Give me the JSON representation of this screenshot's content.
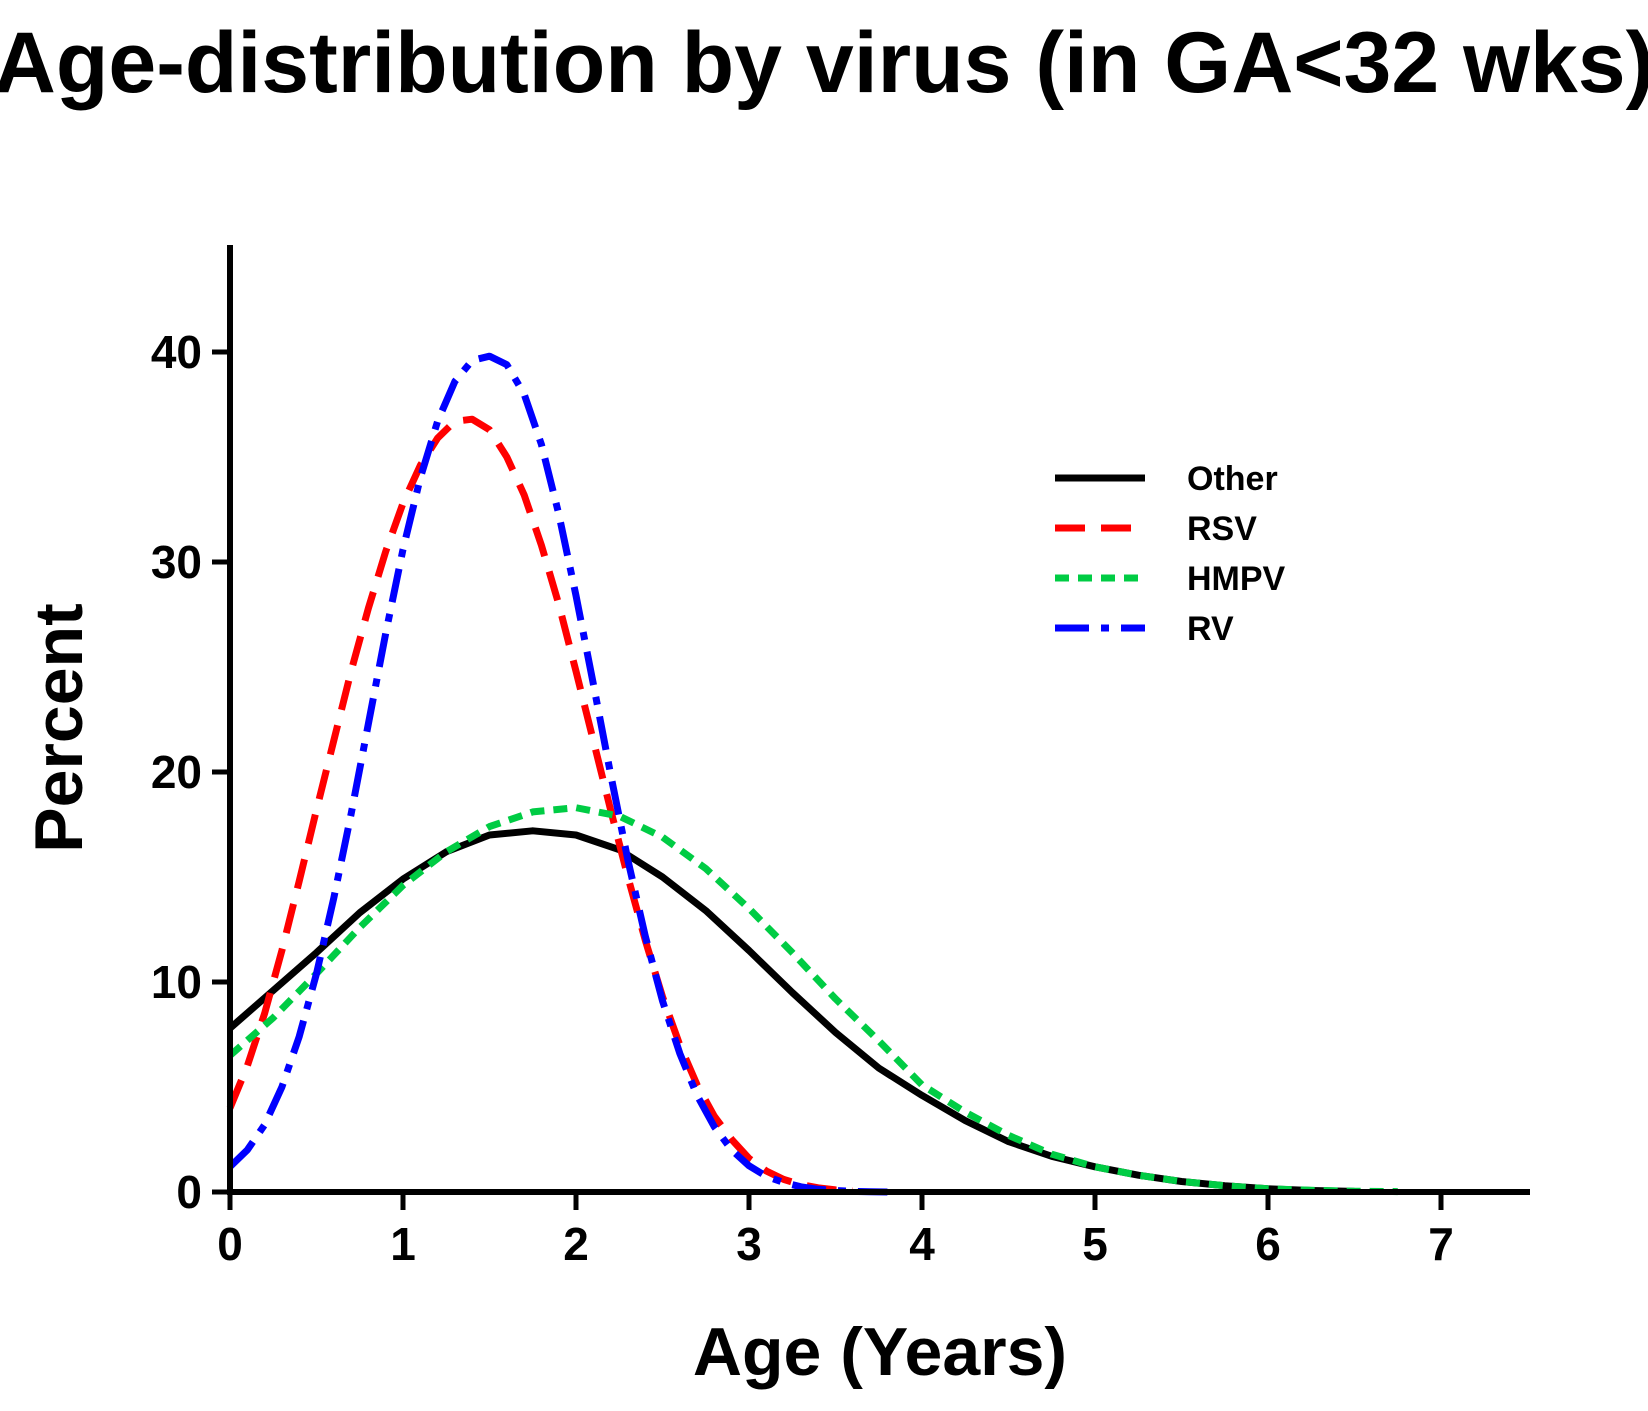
{
  "chart_data": {
    "type": "line",
    "title": "Age-distribution by virus (in GA<32 wks)",
    "xlabel": "Age (Years)",
    "ylabel": "Percent",
    "xlim": [
      0,
      7.5
    ],
    "ylim": [
      0,
      45
    ],
    "x_ticks": [
      0,
      1,
      2,
      3,
      4,
      5,
      6,
      7
    ],
    "y_ticks": [
      0,
      10,
      20,
      30,
      40
    ],
    "grid": false,
    "legend_position": "top-right",
    "series": [
      {
        "name": "Other",
        "color": "#000000",
        "style": "solid",
        "x": [
          0,
          0.25,
          0.5,
          0.75,
          1.0,
          1.25,
          1.5,
          1.75,
          2.0,
          2.25,
          2.5,
          2.75,
          3.0,
          3.25,
          3.5,
          3.75,
          4.0,
          4.25,
          4.5,
          4.75,
          5.0,
          5.25,
          5.5,
          5.75,
          6.0,
          6.25,
          6.5
        ],
        "values": [
          7.8,
          9.6,
          11.4,
          13.3,
          14.9,
          16.2,
          17.0,
          17.2,
          17.0,
          16.3,
          15.0,
          13.4,
          11.5,
          9.5,
          7.6,
          5.9,
          4.6,
          3.4,
          2.4,
          1.7,
          1.2,
          0.8,
          0.5,
          0.3,
          0.15,
          0.07,
          0.03
        ]
      },
      {
        "name": "RSV",
        "color": "#ff0000",
        "style": "dashed",
        "x": [
          0,
          0.1,
          0.2,
          0.3,
          0.4,
          0.5,
          0.6,
          0.7,
          0.8,
          0.9,
          1.0,
          1.1,
          1.2,
          1.3,
          1.4,
          1.5,
          1.6,
          1.7,
          1.8,
          1.9,
          2.0,
          2.1,
          2.2,
          2.3,
          2.4,
          2.5,
          2.6,
          2.7,
          2.8,
          2.9,
          3.0,
          3.1,
          3.2,
          3.3,
          3.4,
          3.5,
          3.6
        ],
        "values": [
          4.0,
          6.0,
          8.5,
          11.5,
          14.8,
          18.2,
          21.5,
          24.8,
          27.8,
          30.5,
          32.8,
          34.6,
          35.9,
          36.7,
          36.8,
          36.3,
          35.0,
          33.2,
          30.8,
          28.0,
          24.8,
          21.5,
          18.2,
          15.0,
          12.0,
          9.3,
          7.0,
          5.1,
          3.6,
          2.5,
          1.6,
          1.0,
          0.6,
          0.35,
          0.2,
          0.1,
          0.05
        ]
      },
      {
        "name": "HMPV",
        "color": "#00cc44",
        "style": "dotted",
        "x": [
          0,
          0.25,
          0.5,
          0.75,
          1.0,
          1.25,
          1.5,
          1.75,
          2.0,
          2.25,
          2.5,
          2.75,
          3.0,
          3.25,
          3.5,
          3.75,
          4.0,
          4.25,
          4.5,
          4.75,
          5.0,
          5.25,
          5.5,
          5.75,
          6.0,
          6.25,
          6.5,
          6.75
        ],
        "values": [
          6.5,
          8.3,
          10.4,
          12.6,
          14.6,
          16.2,
          17.4,
          18.1,
          18.3,
          17.9,
          16.9,
          15.4,
          13.5,
          11.4,
          9.2,
          7.2,
          5.1,
          3.8,
          2.7,
          1.8,
          1.2,
          0.8,
          0.5,
          0.3,
          0.15,
          0.08,
          0.04,
          0.02
        ]
      },
      {
        "name": "RV",
        "color": "#0000ff",
        "style": "dashdot",
        "x": [
          0,
          0.1,
          0.2,
          0.3,
          0.4,
          0.5,
          0.6,
          0.7,
          0.8,
          0.9,
          1.0,
          1.1,
          1.2,
          1.3,
          1.4,
          1.5,
          1.6,
          1.7,
          1.8,
          1.9,
          2.0,
          2.1,
          2.2,
          2.3,
          2.4,
          2.5,
          2.6,
          2.7,
          2.8,
          2.9,
          3.0,
          3.1,
          3.2,
          3.3,
          3.4,
          3.5,
          3.6,
          3.7,
          3.8
        ],
        "values": [
          1.2,
          2.0,
          3.2,
          5.0,
          7.4,
          10.4,
          14.0,
          18.0,
          22.3,
          26.6,
          30.6,
          34.0,
          36.7,
          38.6,
          39.6,
          39.8,
          39.4,
          38.0,
          35.6,
          32.3,
          28.4,
          24.2,
          19.9,
          15.8,
          12.2,
          9.1,
          6.6,
          4.6,
          3.1,
          2.0,
          1.25,
          0.75,
          0.45,
          0.25,
          0.13,
          0.07,
          0.03,
          0.015,
          0.0
        ]
      }
    ]
  }
}
